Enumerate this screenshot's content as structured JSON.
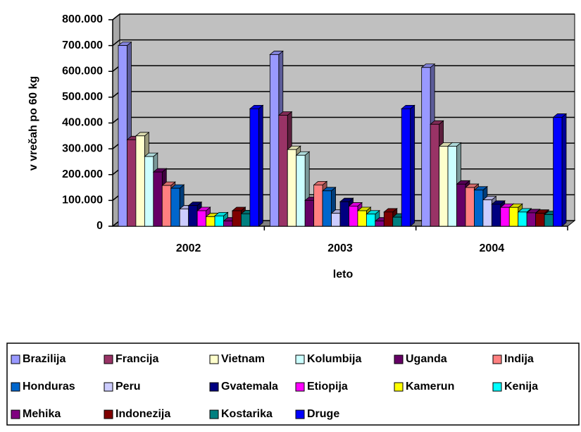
{
  "chart_data": {
    "type": "bar",
    "y_label": "v vrečah po 60 kg",
    "x_label": "leto",
    "categories": [
      "2002",
      "2003",
      "2004"
    ],
    "ylim": [
      0,
      800000
    ],
    "yticks": [
      {
        "value": 0,
        "label": "0"
      },
      {
        "value": 100000,
        "label": "100.000"
      },
      {
        "value": 200000,
        "label": "200.000"
      },
      {
        "value": 300000,
        "label": "300.000"
      },
      {
        "value": 400000,
        "label": "400.000"
      },
      {
        "value": 500000,
        "label": "500.000"
      },
      {
        "value": 600000,
        "label": "600.000"
      },
      {
        "value": 700000,
        "label": "700.000"
      },
      {
        "value": 800000,
        "label": "800.000"
      }
    ],
    "grid": true,
    "legend": "bottom",
    "series": [
      {
        "name": "Brazilija",
        "color": "#9999FF",
        "values": [
          700000,
          665000,
          615000
        ]
      },
      {
        "name": "Francija",
        "color": "#993366",
        "values": [
          335000,
          430000,
          395000
        ]
      },
      {
        "name": "Vietnam",
        "color": "#FFFFCC",
        "values": [
          350000,
          297000,
          310000
        ]
      },
      {
        "name": "Kolumbija",
        "color": "#CCFFFF",
        "values": [
          270000,
          275000,
          310000
        ]
      },
      {
        "name": "Uganda",
        "color": "#660066",
        "values": [
          210000,
          100000,
          163000
        ]
      },
      {
        "name": "Indija",
        "color": "#FF8080",
        "values": [
          158000,
          160000,
          150000
        ]
      },
      {
        "name": "Honduras",
        "color": "#0066CC",
        "values": [
          147000,
          137000,
          140000
        ]
      },
      {
        "name": "Peru",
        "color": "#CCCCFF",
        "values": [
          67000,
          50000,
          102000
        ]
      },
      {
        "name": "Gvatemala",
        "color": "#000080",
        "values": [
          80000,
          95000,
          85000
        ]
      },
      {
        "name": "Etiopija",
        "color": "#FF00FF",
        "values": [
          60000,
          78000,
          73000
        ]
      },
      {
        "name": "Kamerun",
        "color": "#FFFF00",
        "values": [
          37000,
          60000,
          73000
        ]
      },
      {
        "name": "Kenija",
        "color": "#00FFFF",
        "values": [
          40000,
          47000,
          55000
        ]
      },
      {
        "name": "Mehika",
        "color": "#800080",
        "values": [
          20000,
          20000,
          52000
        ]
      },
      {
        "name": "Indonezija",
        "color": "#800000",
        "values": [
          60000,
          55000,
          50000
        ]
      },
      {
        "name": "Kostarika",
        "color": "#008080",
        "values": [
          48000,
          35000,
          45000
        ]
      },
      {
        "name": "Druge",
        "color": "#0000FF",
        "values": [
          455000,
          455000,
          422000
        ]
      }
    ]
  }
}
